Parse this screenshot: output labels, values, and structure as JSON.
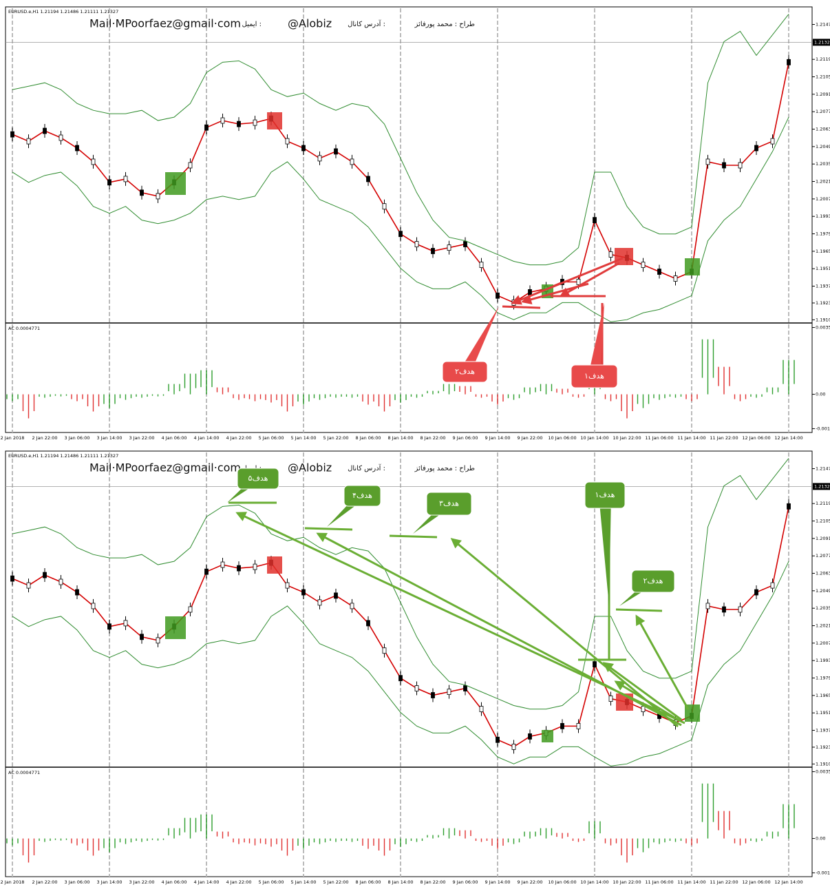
{
  "chart_data": [
    {
      "type": "line",
      "title": "EURUSD.e,H1 1.21194 1.21486 1.21111 1.21327",
      "texts": [
        "Mail·MPoorfaez@gmail·com",
        "ایمیل :",
        "@Alobiz",
        "آدرس کانال :",
        "طراح : محمد پورفائز"
      ],
      "annotations": [
        "هدف۲",
        "هدف۱"
      ],
      "categories": [
        "2 Jan 2018",
        null,
        "2 Jan 22:00",
        null,
        "3 Jan 06:00",
        null,
        "3 Jan 14:00",
        null,
        "3 Jan 22:00",
        null,
        "4 Jan 06:00",
        null,
        "4 Jan 14:00",
        null,
        "4 Jan 22:00",
        null,
        "5 Jan 06:00",
        null,
        "5 Jan 14:00",
        null,
        "5 Jan 22:00",
        null,
        "8 Jan 06:00",
        null,
        "8 Jan 14:00",
        null,
        "8 Jan 22:00",
        null,
        "9 Jan 06:00",
        null,
        "9 Jan 14:00",
        null,
        "9 Jan 22:00",
        null,
        "10 Jan 06:00",
        null,
        "10 Jan 14:00",
        null,
        "10 Jan 22:00",
        null,
        "11 Jan 06:00",
        null,
        "11 Jan 14:00",
        null,
        "11 Jan 22:00",
        null,
        "12 Jan 06:00",
        null,
        "12 Jan 14:00"
      ],
      "series": [
        {
          "color": "#d40000",
          "values": [
            1.20588,
            1.20533,
            1.20616,
            1.20561,
            1.20478,
            1.20368,
            1.20203,
            1.2023,
            1.2012,
            1.20092,
            1.20203,
            1.2034,
            1.20643,
            1.20699,
            1.20671,
            1.20682,
            1.20715,
            1.20533,
            1.20478,
            1.20396,
            1.20451,
            1.20368,
            1.2023,
            1.2001,
            1.19789,
            1.19707,
            1.19652,
            1.19679,
            1.19707,
            1.19541,
            1.19294,
            1.19238,
            1.19321,
            1.19349,
            1.19404,
            1.19404,
            1.199,
            1.19624,
            1.19597,
            1.19541,
            1.19486,
            1.19431,
            1.19486,
            1.20368,
            1.2034,
            1.2034,
            1.20478,
            1.20533,
            1.21167
          ]
        },
        {
          "color": "#2e8b2e",
          "values": [
            1.20947,
            1.20974,
            1.21002,
            1.20947,
            1.20836,
            1.20781,
            1.20754,
            1.20754,
            1.20781,
            1.20699,
            1.20726,
            1.20836,
            1.21084,
            1.21167,
            1.21178,
            1.21112,
            1.20947,
            1.20891,
            1.20919,
            1.20836,
            1.20781,
            1.20836,
            1.20809,
            1.20671,
            1.20396,
            1.2012,
            1.199,
            1.19762,
            1.19734,
            1.19679,
            1.19624,
            1.19569,
            1.19541,
            1.19541,
            1.19569,
            1.19679,
            1.20285,
            1.20285,
            1.2001,
            1.19845,
            1.19789,
            1.19789,
            1.19845,
            1.21002,
            1.21332,
            1.21415,
            1.21222,
            1.21387,
            1.21553
          ]
        },
        {
          "color": "#2e8b2e",
          "values": [
            1.20285,
            1.20203,
            1.20258,
            1.20285,
            1.20175,
            1.2001,
            1.19955,
            1.2001,
            1.199,
            1.19872,
            1.199,
            1.19955,
            1.20065,
            1.20092,
            1.20065,
            1.20092,
            1.20285,
            1.20368,
            1.2023,
            1.20065,
            1.2001,
            1.19955,
            1.19845,
            1.19679,
            1.19514,
            1.19404,
            1.19349,
            1.19349,
            1.19404,
            1.19294,
            1.19156,
            1.19101,
            1.19156,
            1.19156,
            1.19238,
            1.19238,
            1.19156,
            1.19084,
            1.19101,
            1.19156,
            1.19183,
            1.19238,
            1.19294,
            1.19734,
            1.199,
            1.2001,
            1.2023,
            1.20451,
            1.20726
          ]
        }
      ],
      "ylim": [
        1.1908,
        1.216
      ],
      "yticks": [
        {
          "value": 1.2147,
          "label": "1.21470"
        },
        {
          "value": 1.2119,
          "label": "1.21190"
        },
        {
          "value": 1.2105,
          "label": "1.21050"
        },
        {
          "value": 1.2091,
          "label": "1.20910"
        },
        {
          "value": 1.2077,
          "label": "1.20770"
        },
        {
          "value": 1.2063,
          "label": "1.20630"
        },
        {
          "value": 1.2049,
          "label": "1.20490"
        },
        {
          "value": 1.2035,
          "label": "1.20350"
        },
        {
          "value": 1.2021,
          "label": "1.20210"
        },
        {
          "value": 1.2007,
          "label": "1.20070"
        },
        {
          "value": 1.1993,
          "label": "1.19930"
        },
        {
          "value": 1.1979,
          "label": "1.19790"
        },
        {
          "value": 1.1965,
          "label": "1.19650"
        },
        {
          "value": 1.1951,
          "label": "1.19510"
        },
        {
          "value": 1.1937,
          "label": "1.19370"
        },
        {
          "value": 1.19235,
          "label": "1.19235"
        },
        {
          "value": 1.191,
          "label": "1.19100"
        }
      ],
      "price_line": {
        "value": 1.21327,
        "label": "1.21327"
      },
      "grid": true,
      "indicator": {
        "type": "bar",
        "label": "AC 0.0004771",
        "up_color": "#2e9e2e",
        "down_color": "#e03030",
        "values": [
          -0.00036,
          -0.00126,
          -0.00018,
          -0.00011,
          -0.00036,
          -0.0009,
          -0.00072,
          -0.00029,
          -0.00018,
          -0.00011,
          0.00054,
          0.00108,
          0.00126,
          0.00036,
          -0.00029,
          -0.00036,
          -0.00043,
          -0.0009,
          -0.00054,
          -0.00029,
          -0.00018,
          -0.00018,
          -0.00054,
          -0.0009,
          -0.00043,
          -0.00018,
          0.00018,
          0.00054,
          0.00043,
          -0.00018,
          -0.00054,
          -0.00029,
          0.00036,
          0.00054,
          0.00029,
          -0.00018,
          0.0009,
          -0.00036,
          -0.00126,
          -0.00072,
          -0.00029,
          -0.00018,
          -0.00036,
          0.00288,
          0.00144,
          -0.00036,
          -0.00018,
          0.00036,
          0.0018
        ],
        "ylim": [
          -0.002,
          0.0037
        ],
        "yticks": [
          {
            "value": 0.0035,
            "label": "0.00350"
          },
          {
            "value": 0,
            "label": "0.00"
          },
          {
            "value": -0.0018,
            "label": "-0.00180"
          }
        ]
      }
    },
    {
      "type": "line",
      "title": "EURUSD.e,H1 1.21194 1.21486 1.21111 1.21327",
      "texts": [
        "Mail·MPoorfaez@gmail·com",
        "ایمیل :",
        "@Alobiz",
        "آدرس کانال :",
        "طراح : محمد پورفائز"
      ],
      "annotations": [
        "هدف۵",
        "هدف۴",
        "هدف۳",
        "هدف۱",
        "هدف۲"
      ],
      "categories": [
        "2 Jan 2018",
        null,
        "2 Jan 22:00",
        null,
        "3 Jan 06:00",
        null,
        "3 Jan 14:00",
        null,
        "3 Jan 22:00",
        null,
        "4 Jan 06:00",
        null,
        "4 Jan 14:00",
        null,
        "4 Jan 22:00",
        null,
        "5 Jan 06:00",
        null,
        "5 Jan 14:00",
        null,
        "5 Jan 22:00",
        null,
        "8 Jan 06:00",
        null,
        "8 Jan 14:00",
        null,
        "8 Jan 22:00",
        null,
        "9 Jan 06:00",
        null,
        "9 Jan 14:00",
        null,
        "9 Jan 22:00",
        null,
        "10 Jan 06:00",
        null,
        "10 Jan 14:00",
        null,
        "10 Jan 22:00",
        null,
        "11 Jan 06:00",
        null,
        "11 Jan 14:00",
        null,
        "11 Jan 22:00",
        null,
        "12 Jan 06:00",
        null,
        "12 Jan 14:00"
      ],
      "series": [
        {
          "color": "#d40000",
          "values": [
            1.20588,
            1.20533,
            1.20616,
            1.20561,
            1.20478,
            1.20368,
            1.20203,
            1.2023,
            1.2012,
            1.20092,
            1.20203,
            1.2034,
            1.20643,
            1.20699,
            1.20671,
            1.20682,
            1.20715,
            1.20533,
            1.20478,
            1.20396,
            1.20451,
            1.20368,
            1.2023,
            1.2001,
            1.19789,
            1.19707,
            1.19652,
            1.19679,
            1.19707,
            1.19541,
            1.19294,
            1.19238,
            1.19321,
            1.19349,
            1.19404,
            1.19404,
            1.199,
            1.19624,
            1.19597,
            1.19541,
            1.19486,
            1.19431,
            1.19486,
            1.20368,
            1.2034,
            1.2034,
            1.20478,
            1.20533,
            1.21167
          ]
        },
        {
          "color": "#2e8b2e",
          "values": [
            1.20947,
            1.20974,
            1.21002,
            1.20947,
            1.20836,
            1.20781,
            1.20754,
            1.20754,
            1.20781,
            1.20699,
            1.20726,
            1.20836,
            1.21084,
            1.21167,
            1.21178,
            1.21112,
            1.20947,
            1.20891,
            1.20919,
            1.20836,
            1.20781,
            1.20836,
            1.20809,
            1.20671,
            1.20396,
            1.2012,
            1.199,
            1.19762,
            1.19734,
            1.19679,
            1.19624,
            1.19569,
            1.19541,
            1.19541,
            1.19569,
            1.19679,
            1.20285,
            1.20285,
            1.2001,
            1.19845,
            1.19789,
            1.19789,
            1.19845,
            1.21002,
            1.21332,
            1.21415,
            1.21222,
            1.21387,
            1.21553
          ]
        },
        {
          "color": "#2e8b2e",
          "values": [
            1.20285,
            1.20203,
            1.20258,
            1.20285,
            1.20175,
            1.2001,
            1.19955,
            1.2001,
            1.199,
            1.19872,
            1.199,
            1.19955,
            1.20065,
            1.20092,
            1.20065,
            1.20092,
            1.20285,
            1.20368,
            1.2023,
            1.20065,
            1.2001,
            1.19955,
            1.19845,
            1.19679,
            1.19514,
            1.19404,
            1.19349,
            1.19349,
            1.19404,
            1.19294,
            1.19156,
            1.19101,
            1.19156,
            1.19156,
            1.19238,
            1.19238,
            1.19156,
            1.19084,
            1.19101,
            1.19156,
            1.19183,
            1.19238,
            1.19294,
            1.19734,
            1.199,
            1.2001,
            1.2023,
            1.20451,
            1.20726
          ]
        }
      ],
      "ylim": [
        1.1908,
        1.216
      ],
      "yticks": [
        {
          "value": 1.2147,
          "label": "1.21470"
        },
        {
          "value": 1.2119,
          "label": "1.21190"
        },
        {
          "value": 1.2105,
          "label": "1.21050"
        },
        {
          "value": 1.2091,
          "label": "1.20910"
        },
        {
          "value": 1.2077,
          "label": "1.20770"
        },
        {
          "value": 1.2063,
          "label": "1.20630"
        },
        {
          "value": 1.2049,
          "label": "1.20490"
        },
        {
          "value": 1.2035,
          "label": "1.20350"
        },
        {
          "value": 1.2021,
          "label": "1.20210"
        },
        {
          "value": 1.2007,
          "label": "1.20070"
        },
        {
          "value": 1.1993,
          "label": "1.19930"
        },
        {
          "value": 1.1979,
          "label": "1.19790"
        },
        {
          "value": 1.1965,
          "label": "1.19650"
        },
        {
          "value": 1.1951,
          "label": "1.19510"
        },
        {
          "value": 1.1937,
          "label": "1.19370"
        },
        {
          "value": 1.19235,
          "label": "1.19235"
        },
        {
          "value": 1.191,
          "label": "1.19100"
        }
      ],
      "price_line": {
        "value": 1.21327,
        "label": "1.21327"
      },
      "grid": true,
      "indicator": {
        "type": "bar",
        "label": "AC 0.0004771",
        "up_color": "#2e9e2e",
        "down_color": "#e03030",
        "values": [
          -0.00036,
          -0.00126,
          -0.00018,
          -0.00011,
          -0.00036,
          -0.0009,
          -0.00072,
          -0.00029,
          -0.00018,
          -0.00011,
          0.00054,
          0.00108,
          0.00126,
          0.00036,
          -0.00029,
          -0.00036,
          -0.00043,
          -0.0009,
          -0.00054,
          -0.00029,
          -0.00018,
          -0.00018,
          -0.00054,
          -0.0009,
          -0.00043,
          -0.00018,
          0.00018,
          0.00054,
          0.00043,
          -0.00018,
          -0.00054,
          -0.00029,
          0.00036,
          0.00054,
          0.00029,
          -0.00018,
          0.0009,
          -0.00036,
          -0.00126,
          -0.00072,
          -0.00029,
          -0.00018,
          -0.00036,
          0.00288,
          0.00144,
          -0.00036,
          -0.00018,
          0.00036,
          0.0018
        ],
        "ylim": [
          -0.002,
          0.0037
        ],
        "yticks": [
          {
            "value": 0.0035,
            "label": "0.00350"
          },
          {
            "value": 0,
            "label": "0.00"
          },
          {
            "value": -0.0018,
            "label": "-0.00180"
          }
        ]
      }
    }
  ]
}
